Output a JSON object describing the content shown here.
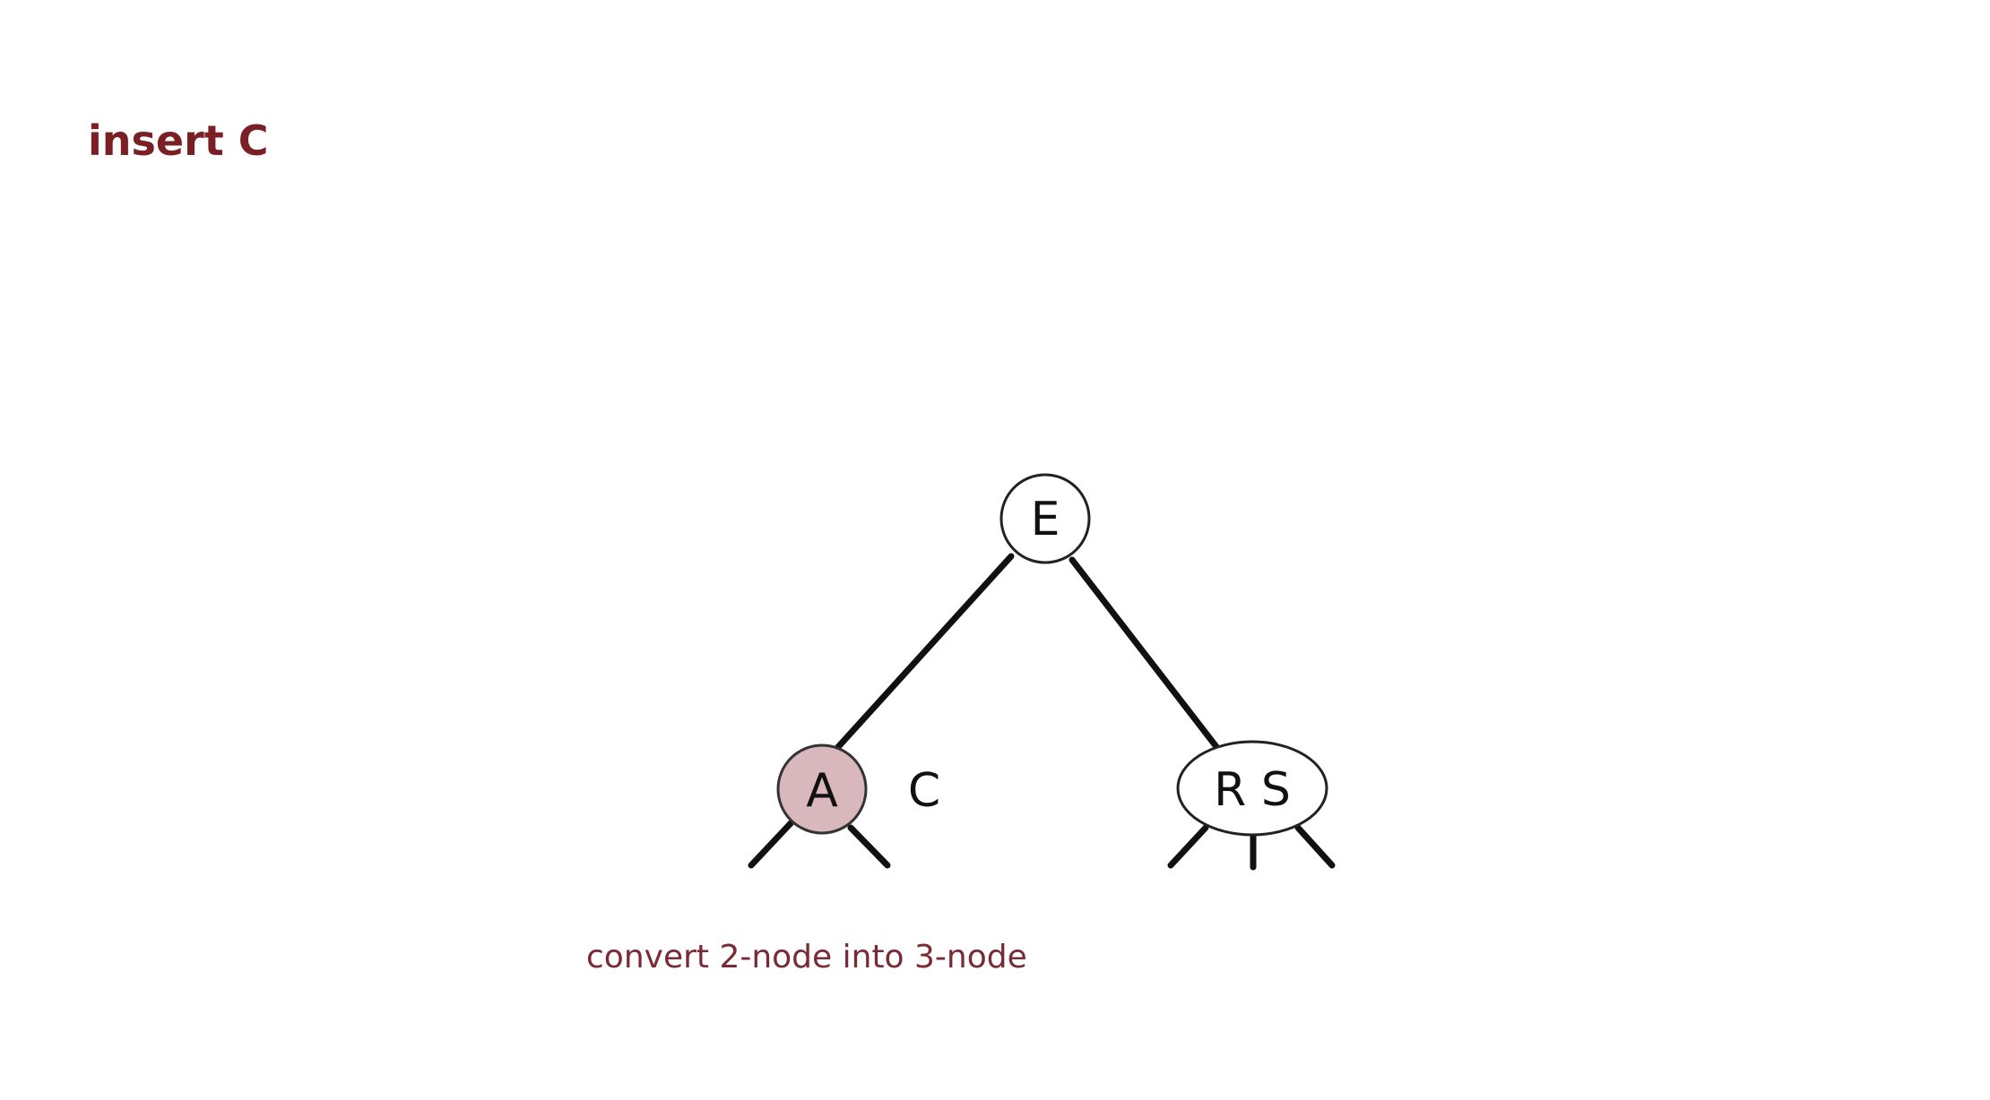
{
  "title": "insert C",
  "tree": {
    "root": {
      "label": "E"
    },
    "left_child": {
      "label": "A",
      "highlighted": true,
      "pending_key": "C"
    },
    "right_child": {
      "label": "R S"
    }
  },
  "caption": "convert 2-node into 3-node",
  "colors": {
    "title": "#7a1f24",
    "caption": "#7a2a35",
    "highlight_fill": "#d9b8bd",
    "edge": "#111111",
    "node_stroke": "#222222"
  }
}
